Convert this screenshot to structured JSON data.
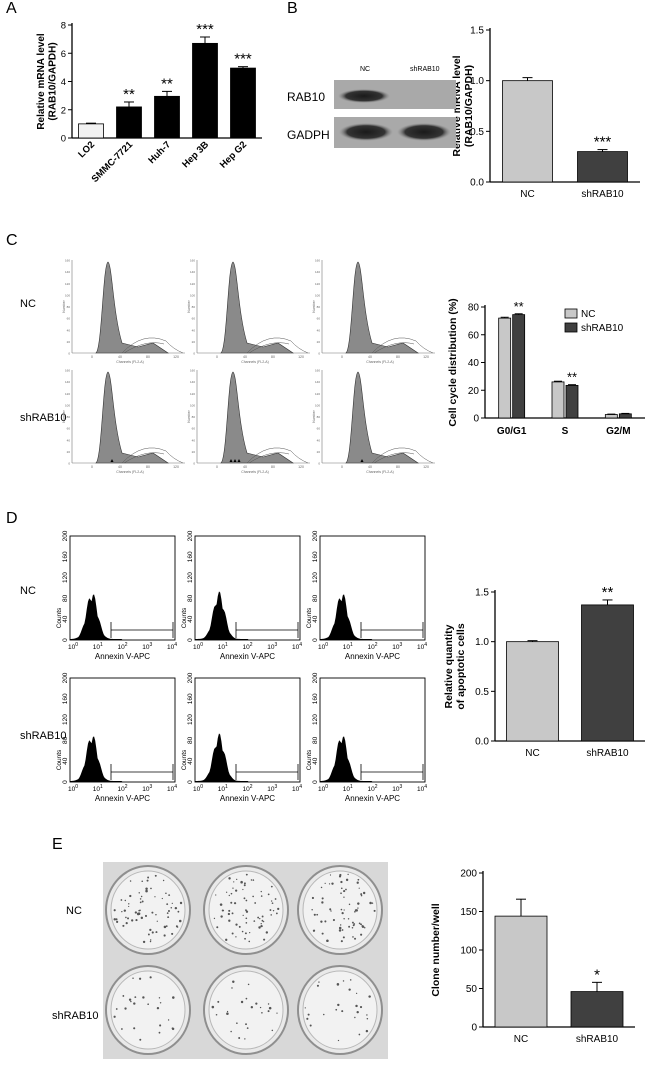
{
  "panels": {
    "A": "A",
    "B": "B",
    "C": "C",
    "D": "D",
    "E": "E"
  },
  "colors": {
    "light": "#c8c8c8",
    "dark": "#404040",
    "black": "#000000",
    "white": "#f2f2f2",
    "hist_fill": "#8a8a8a"
  },
  "blot": {
    "lane_labels": [
      "NC",
      "shRAB10"
    ],
    "row_labels": [
      "RAB10",
      "GADPH"
    ]
  },
  "rows": {
    "nc": "NC",
    "sh": "shRAB10"
  },
  "flow": {
    "x_title": "Channels (FL2-A)",
    "y_title": "Number",
    "x_ticks": [
      "0",
      "40",
      "80",
      "120"
    ],
    "y_ticks": [
      "0",
      "10",
      "20",
      "30",
      "40",
      "50",
      "60",
      "70",
      "80",
      "90",
      "100",
      "110",
      "120",
      "130",
      "140",
      "150",
      "160"
    ]
  },
  "annexin": {
    "x_title": "Annexin V-APC",
    "y_title": "Counts",
    "y_ticks": [
      "0",
      "40",
      "80",
      "120",
      "160",
      "200"
    ],
    "x_ticks": [
      "10",
      "10",
      "10",
      "10",
      "10"
    ],
    "x_exps": [
      "0",
      "1",
      "2",
      "3",
      "4"
    ]
  },
  "chart_data": [
    {
      "id": "A",
      "type": "bar",
      "categories": [
        "LO2",
        "SMMC-7721",
        "Huh-7",
        "Hep 3B",
        "Hep G2"
      ],
      "values": [
        1.0,
        2.2,
        2.95,
        6.7,
        4.95
      ],
      "errors": [
        0.05,
        0.35,
        0.35,
        0.45,
        0.1
      ],
      "bar_colors": [
        "#f2f2f2",
        "#000000",
        "#000000",
        "#000000",
        "#000000"
      ],
      "annotations": [
        "",
        "**",
        "**",
        "***",
        "***"
      ],
      "ylabel": "Relative mRNA level\n(RAB10/GAPDH)",
      "ylim": [
        0,
        8
      ],
      "yticks": [
        0,
        2,
        4,
        6,
        8
      ]
    },
    {
      "id": "B",
      "type": "bar",
      "categories": [
        "NC",
        "shRAB10"
      ],
      "values": [
        1.0,
        0.3
      ],
      "errors": [
        0.03,
        0.02
      ],
      "bar_colors": [
        "#c8c8c8",
        "#404040"
      ],
      "annotations": [
        "",
        "***"
      ],
      "ylabel": "Relative mRNA level\n(RAB10/GAPDH)",
      "ylim": [
        0,
        1.5
      ],
      "yticks": [
        0.0,
        0.5,
        1.0,
        1.5
      ]
    },
    {
      "id": "C",
      "type": "bar",
      "categories": [
        "G0/G1",
        "S",
        "G2/M"
      ],
      "series": [
        {
          "name": "NC",
          "values": [
            72,
            26,
            2.5
          ],
          "errors": [
            0.6,
            0.5,
            0.3
          ],
          "color": "#c8c8c8"
        },
        {
          "name": "shRAB10",
          "values": [
            74.5,
            23.5,
            3
          ],
          "errors": [
            0.6,
            0.5,
            0.3
          ],
          "color": "#404040"
        }
      ],
      "annotations": [
        "**",
        "**",
        ""
      ],
      "ylabel": "Cell cycle distribution (%)",
      "ylim": [
        0,
        80
      ],
      "yticks": [
        0,
        20,
        40,
        60,
        80
      ],
      "legend": "top-right"
    },
    {
      "id": "D",
      "type": "bar",
      "categories": [
        "NC",
        "shRAB10"
      ],
      "values": [
        1.0,
        1.37
      ],
      "errors": [
        0.01,
        0.05
      ],
      "bar_colors": [
        "#c8c8c8",
        "#404040"
      ],
      "annotations": [
        "",
        "**"
      ],
      "ylabel": "Relative quantity\nof apoptotic cells",
      "ylim": [
        0,
        1.5
      ],
      "yticks": [
        0.0,
        0.5,
        1.0,
        1.5
      ]
    },
    {
      "id": "E",
      "type": "bar",
      "categories": [
        "NC",
        "shRAB10"
      ],
      "values": [
        144,
        46
      ],
      "errors": [
        22,
        12
      ],
      "bar_colors": [
        "#c8c8c8",
        "#404040"
      ],
      "annotations": [
        "",
        "*"
      ],
      "ylabel": "Clone number/well",
      "ylim": [
        0,
        200
      ],
      "yticks": [
        0,
        50,
        100,
        150,
        200
      ]
    }
  ]
}
